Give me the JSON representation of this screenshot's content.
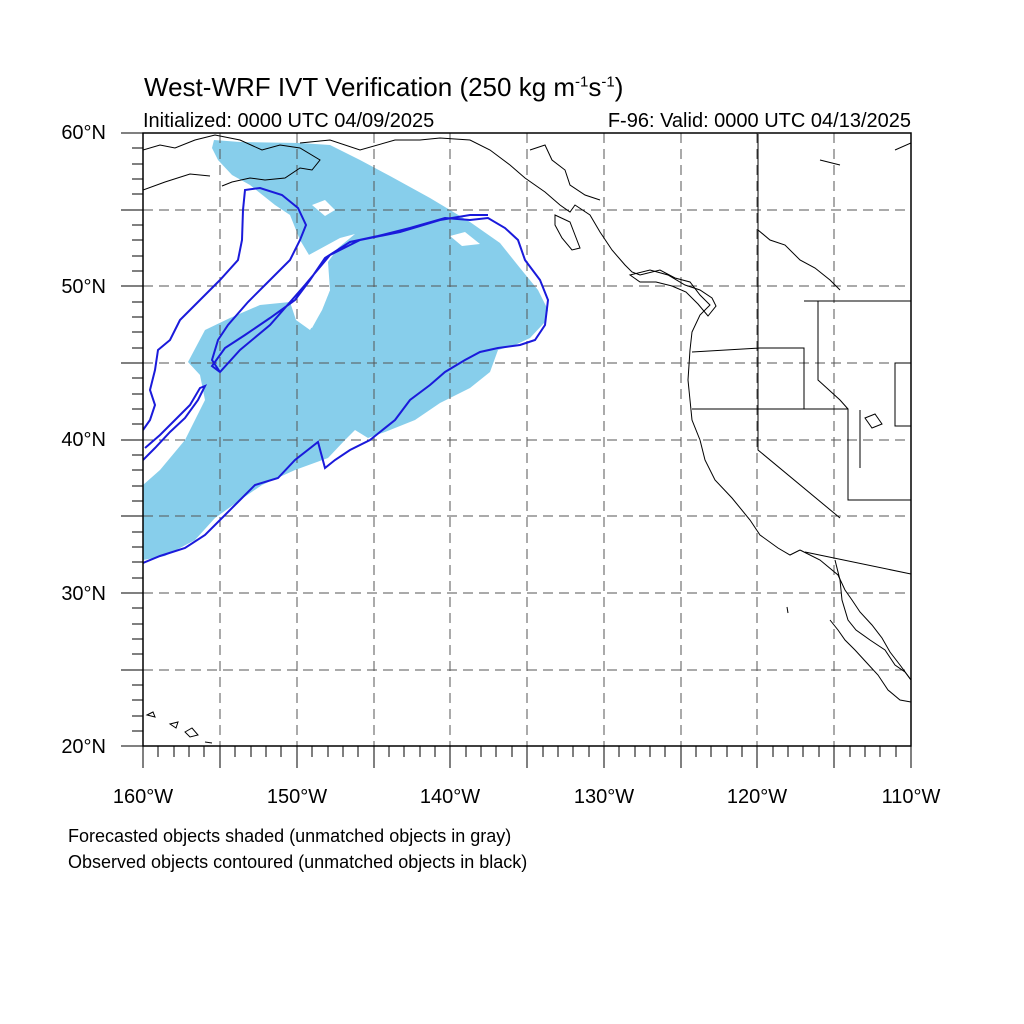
{
  "title": {
    "main": "West-WRF IVT Verification (250 kg m",
    "sup1": "-1",
    "mid": "s",
    "sup2": "-1",
    "end": ")"
  },
  "subtitle_left": "Initialized: 0000 UTC 04/09/2025",
  "subtitle_right": "F-96: Valid: 0000 UTC 04/13/2025",
  "lat_labels": [
    "60°N",
    "50°N",
    "40°N",
    "30°N",
    "20°N"
  ],
  "lon_labels": [
    "160°W",
    "150°W",
    "140°W",
    "130°W",
    "120°W",
    "110°W"
  ],
  "footnotes": [
    "Forecasted objects shaded (unmatched objects in gray)",
    "Observed objects contoured (unmatched objects in black)"
  ],
  "colors": {
    "forecast_fill": "#87ceeb",
    "observed_contour": "#1a1adb",
    "grid": "#555555",
    "coastline": "#000000"
  },
  "map_extent": {
    "lon_min": -160,
    "lon_max": -110,
    "lat_min": 20,
    "lat_max": 60
  }
}
